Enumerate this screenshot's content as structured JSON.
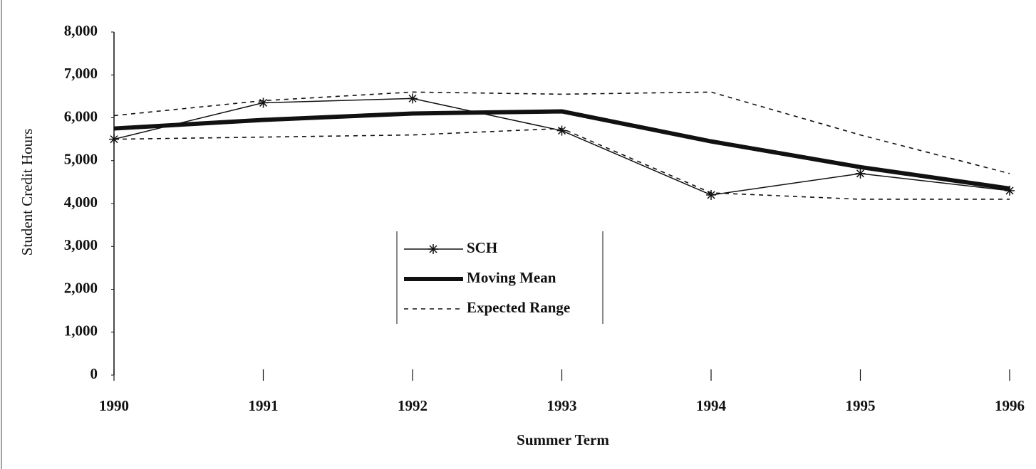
{
  "chart_data": {
    "type": "line",
    "x_label": "Summer Term",
    "y_label": "Student Credit Hours",
    "categories": [
      "1990",
      "1991",
      "1992",
      "1993",
      "1994",
      "1995",
      "1996"
    ],
    "ylim": [
      0,
      8000
    ],
    "yticks": [
      0,
      {
        "value": 1000,
        "label": "1,000"
      },
      {
        "value": 2000,
        "label": "2,000"
      },
      {
        "value": 3000,
        "label": "3,000"
      },
      {
        "value": 4000,
        "label": "4,000"
      },
      {
        "value": 5000,
        "label": "5,000"
      },
      {
        "value": 6000,
        "label": "6,000"
      },
      {
        "value": 7000,
        "label": "7,000"
      },
      {
        "value": 8000,
        "label": "8,000"
      }
    ],
    "series": [
      {
        "name": "SCH",
        "color": "#111111",
        "style": "marker",
        "values": [
          5500,
          6350,
          6450,
          5700,
          4200,
          4700,
          4300
        ]
      },
      {
        "name": "Moving Mean",
        "color": "#111111",
        "style": "thick",
        "values": [
          5750,
          5950,
          6100,
          6150,
          5450,
          4850,
          4350
        ]
      },
      {
        "name": "Expected Range",
        "color": "#111111",
        "style": "dashed",
        "values": [
          6050,
          6400,
          6600,
          6550,
          6600,
          5600,
          4700
        ]
      },
      {
        "name": "Expected Range",
        "color": "#111111",
        "style": "dashed",
        "values": [
          5500,
          5550,
          5600,
          5750,
          4250,
          4100,
          4100
        ]
      }
    ]
  }
}
